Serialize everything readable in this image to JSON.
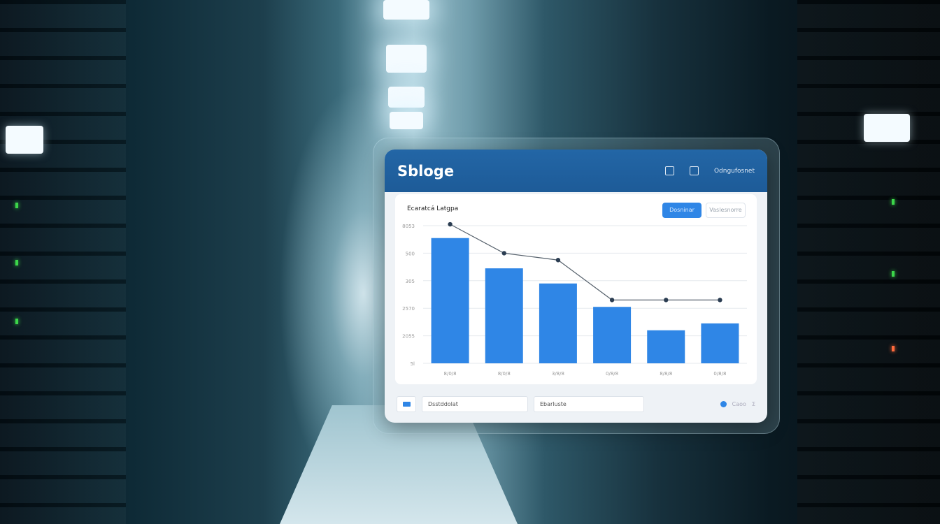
{
  "app": {
    "title": "Sbloge",
    "header_label": "Odngufosnet"
  },
  "card": {
    "title": "Ecaratcá Latgpa",
    "primary_button": "Dosninar",
    "secondary_button": "Vaslesnorre"
  },
  "footer": {
    "left_input": "Dsstddolat",
    "right_input": "Ebarluste",
    "right_text": "Caoo",
    "right_sign": "Σ"
  },
  "colors": {
    "accent": "#2f86e6",
    "header": "#2366a6",
    "line": "#3b4a5a"
  },
  "chart_data": {
    "type": "bar",
    "title": "Ecaratcá Latgpa",
    "y_tick_labels": [
      "8053",
      "500",
      "305",
      "2570",
      "2055",
      "5l"
    ],
    "categories": [
      "8/0/8",
      "8/0/8",
      "3/8/8",
      "0/8/8",
      "8/8/8",
      "0/8/8"
    ],
    "series": [
      {
        "type": "bar",
        "values": [
          91,
          69,
          58,
          41,
          24,
          29
        ]
      },
      {
        "type": "line",
        "values": [
          101,
          80,
          75,
          46,
          46,
          46
        ]
      }
    ],
    "ylim": [
      0,
      100
    ],
    "grid": true
  }
}
